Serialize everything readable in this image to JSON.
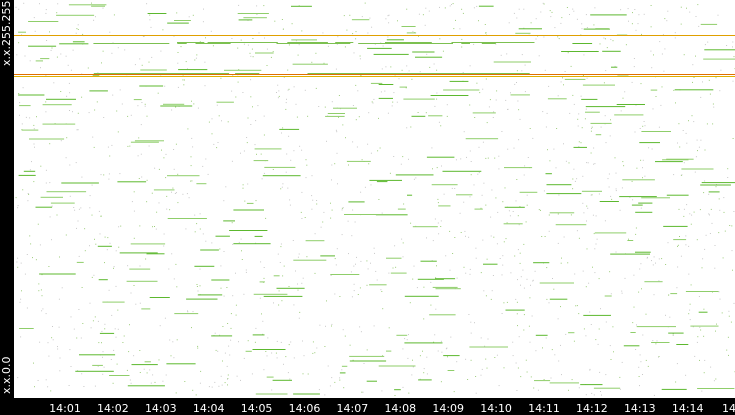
{
  "y_axis": {
    "top_label": "x.x.255.255",
    "bottom_label": "x.x.0.0"
  },
  "x_axis": {
    "tick_labels": [
      "14:01",
      "14:02",
      "14:03",
      "14:04",
      "14:05",
      "14:06",
      "14:07",
      "14:08",
      "14:09",
      "14:10",
      "14:11",
      "14:12",
      "14:13",
      "14:14",
      "14"
    ]
  }
}
